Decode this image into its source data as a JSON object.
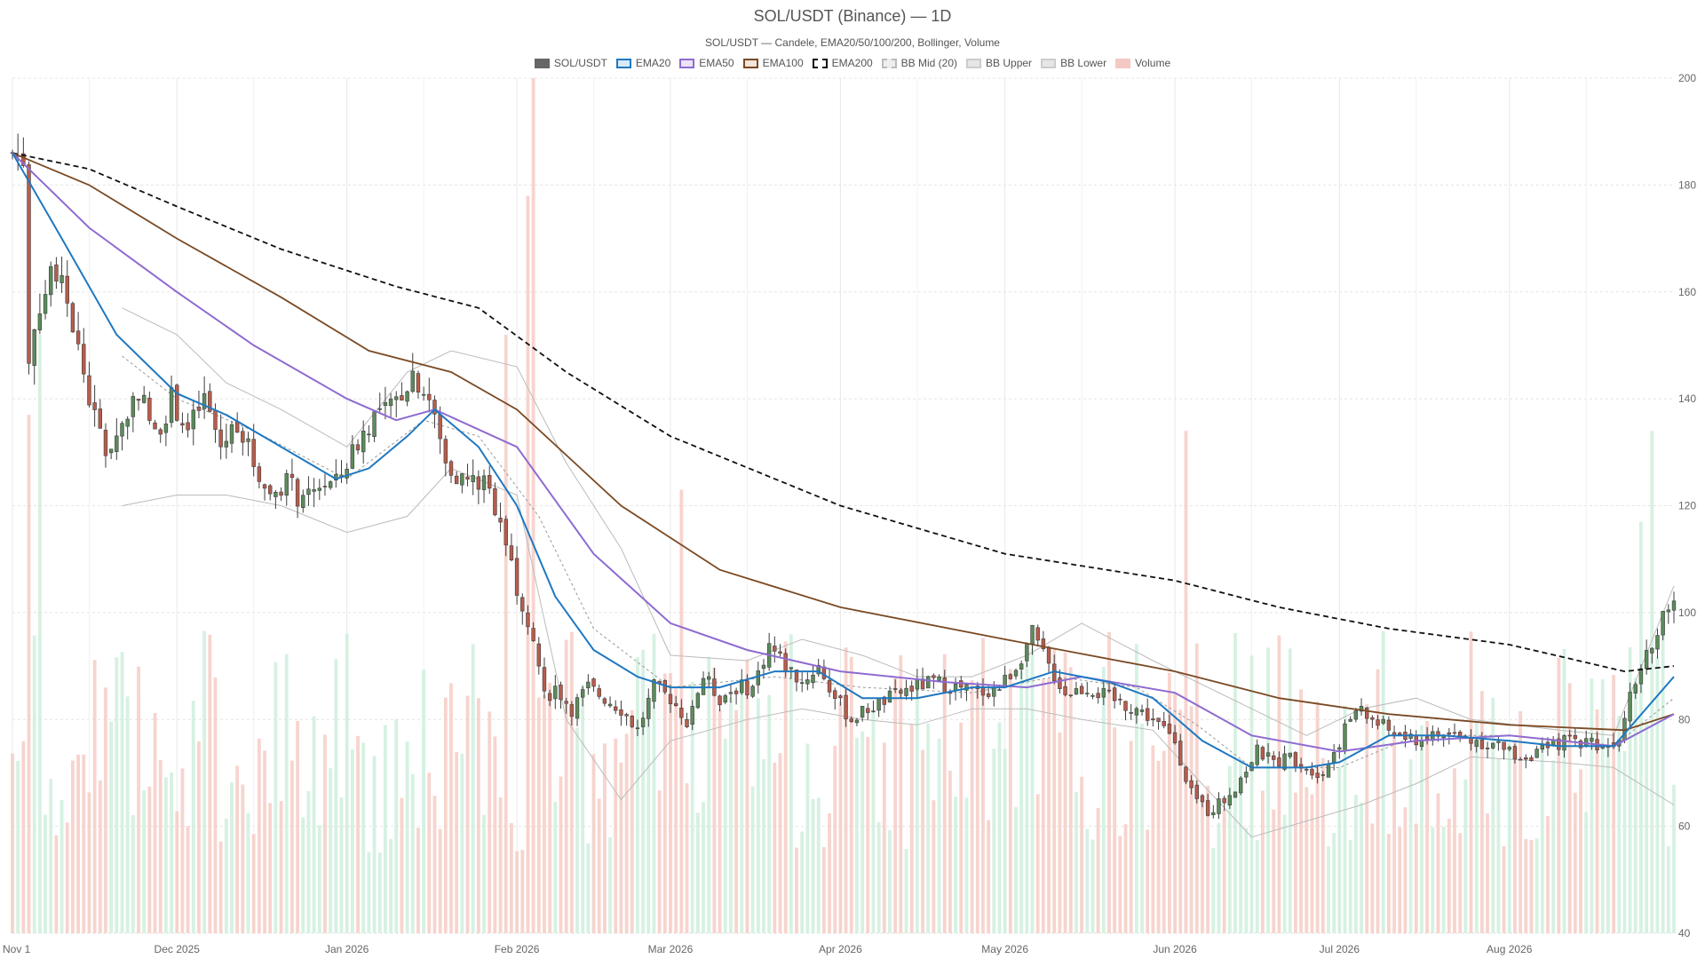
{
  "chart_data": {
    "type": "candlestick",
    "title": "SOL/USDT (Binance) — 1D",
    "subtitle": "SOL/USDT — Candele, EMA20/50/100/200, Bollinger, Volume",
    "legend": [
      {
        "name": "SOL/USDT",
        "fill": "#666666",
        "border": "#666666",
        "style": "solid"
      },
      {
        "name": "EMA20",
        "fill": "#d6eaf8",
        "border": "#1f78c1",
        "style": "solid"
      },
      {
        "name": "EMA50",
        "fill": "#ece3f7",
        "border": "#8e6bd1",
        "style": "solid"
      },
      {
        "name": "EMA100",
        "fill": "#f3e6da",
        "border": "#7a4a24",
        "style": "solid"
      },
      {
        "name": "EMA200",
        "fill": "#ffffff",
        "border": "#111111",
        "style": "dashed"
      },
      {
        "name": "BB Mid (20)",
        "fill": "#eeeeee",
        "border": "#bbbbbb",
        "style": "dashed"
      },
      {
        "name": "BB Upper",
        "fill": "#e6e6e6",
        "border": "#cccccc",
        "style": "solid"
      },
      {
        "name": "BB Lower",
        "fill": "#e6e6e6",
        "border": "#cccccc",
        "style": "solid"
      },
      {
        "name": "Volume",
        "fill": "#f4c9c3",
        "border": "#f4c9c3",
        "style": "solid"
      }
    ],
    "x_axis": {
      "start": "2025-11-01",
      "end": "2026-08-31",
      "tick_labels": [
        {
          "date": "2025-11-01",
          "label": "Nov 1"
        },
        {
          "date": "2025-12-01",
          "label": "Dec 2025"
        },
        {
          "date": "2026-01-01",
          "label": "Jan 2026"
        },
        {
          "date": "2026-02-01",
          "label": "Feb 2026"
        },
        {
          "date": "2026-03-01",
          "label": "Mar 2026"
        },
        {
          "date": "2026-04-01",
          "label": "Apr 2026"
        },
        {
          "date": "2026-05-01",
          "label": "May 2026"
        },
        {
          "date": "2026-06-01",
          "label": "Jun 2026"
        },
        {
          "date": "2026-07-01",
          "label": "Jul 2026"
        },
        {
          "date": "2026-08-01",
          "label": "Aug 2026"
        }
      ],
      "minor_grid_dates": [
        "2025-11-15",
        "2025-12-15",
        "2026-01-15",
        "2026-02-15",
        "2026-03-15",
        "2026-04-15",
        "2026-05-15",
        "2026-06-15",
        "2026-07-15",
        "2026-08-15"
      ]
    },
    "y_axis": {
      "position": "right",
      "min": 40,
      "max": 200,
      "ticks": [
        40,
        60,
        80,
        100,
        120,
        140,
        160,
        180,
        200
      ]
    },
    "grid": true,
    "legend_position": "top-center",
    "colors": {
      "up": "#5b8c5a",
      "down": "#b85c4c",
      "volume_up": "#cfeedd",
      "volume_down": "#f6ccc6",
      "ema20": "#1f78c1",
      "ema50": "#8e6bd1",
      "ema100": "#7a4a24",
      "ema200": "#111111",
      "bb_mid": "#999999",
      "bb_band": "#bbbbbb"
    },
    "price_path": [
      [
        "2025-11-01",
        186
      ],
      [
        "2025-11-03",
        185
      ],
      [
        "2025-11-04",
        148
      ],
      [
        "2025-11-06",
        158
      ],
      [
        "2025-11-09",
        164
      ],
      [
        "2025-11-12",
        154
      ],
      [
        "2025-11-15",
        140
      ],
      [
        "2025-11-18",
        130
      ],
      [
        "2025-11-21",
        135
      ],
      [
        "2025-11-24",
        142
      ],
      [
        "2025-11-27",
        133
      ],
      [
        "2025-11-30",
        140
      ],
      [
        "2025-12-03",
        134
      ],
      [
        "2025-12-06",
        140
      ],
      [
        "2025-12-09",
        131
      ],
      [
        "2025-12-12",
        136
      ],
      [
        "2025-12-15",
        128
      ],
      [
        "2025-12-18",
        122
      ],
      [
        "2025-12-21",
        125
      ],
      [
        "2025-12-24",
        120
      ],
      [
        "2025-12-27",
        124
      ],
      [
        "2025-12-30",
        124
      ],
      [
        "2026-01-03",
        132
      ],
      [
        "2026-01-06",
        137
      ],
      [
        "2026-01-09",
        138
      ],
      [
        "2026-01-13",
        145
      ],
      [
        "2026-01-16",
        140
      ],
      [
        "2026-01-19",
        128
      ],
      [
        "2026-01-22",
        125
      ],
      [
        "2026-01-26",
        124
      ],
      [
        "2026-01-29",
        118
      ],
      [
        "2026-02-01",
        105
      ],
      [
        "2026-02-04",
        96
      ],
      [
        "2026-02-06",
        84
      ],
      [
        "2026-02-08",
        86
      ],
      [
        "2026-02-11",
        82
      ],
      [
        "2026-02-14",
        86
      ],
      [
        "2026-02-17",
        84
      ],
      [
        "2026-02-20",
        82
      ],
      [
        "2026-02-23",
        78
      ],
      [
        "2026-02-26",
        86
      ],
      [
        "2026-03-01",
        84
      ],
      [
        "2026-03-04",
        80
      ],
      [
        "2026-03-07",
        88
      ],
      [
        "2026-03-10",
        84
      ],
      [
        "2026-03-13",
        86
      ],
      [
        "2026-03-16",
        86
      ],
      [
        "2026-03-19",
        94
      ],
      [
        "2026-03-22",
        90
      ],
      [
        "2026-03-25",
        87
      ],
      [
        "2026-03-28",
        90
      ],
      [
        "2026-03-31",
        84
      ],
      [
        "2026-04-03",
        80
      ],
      [
        "2026-04-06",
        82
      ],
      [
        "2026-04-10",
        84
      ],
      [
        "2026-04-14",
        86
      ],
      [
        "2026-04-18",
        87
      ],
      [
        "2026-04-22",
        86
      ],
      [
        "2026-04-26",
        85
      ],
      [
        "2026-04-30",
        86
      ],
      [
        "2026-05-03",
        90
      ],
      [
        "2026-05-06",
        96
      ],
      [
        "2026-05-09",
        90
      ],
      [
        "2026-05-12",
        85
      ],
      [
        "2026-05-16",
        86
      ],
      [
        "2026-05-20",
        84
      ],
      [
        "2026-05-25",
        82
      ],
      [
        "2026-05-28",
        80
      ],
      [
        "2026-06-01",
        76
      ],
      [
        "2026-06-04",
        66
      ],
      [
        "2026-06-07",
        63
      ],
      [
        "2026-06-10",
        65
      ],
      [
        "2026-06-13",
        69
      ],
      [
        "2026-06-16",
        74
      ],
      [
        "2026-06-19",
        72
      ],
      [
        "2026-06-22",
        73
      ],
      [
        "2026-06-25",
        71
      ],
      [
        "2026-06-28",
        70
      ],
      [
        "2026-07-01",
        76
      ],
      [
        "2026-07-04",
        82
      ],
      [
        "2026-07-07",
        80
      ],
      [
        "2026-07-10",
        78
      ],
      [
        "2026-07-14",
        76
      ],
      [
        "2026-07-18",
        77
      ],
      [
        "2026-07-22",
        77
      ],
      [
        "2026-07-26",
        76
      ],
      [
        "2026-07-30",
        75
      ],
      [
        "2026-08-03",
        73
      ],
      [
        "2026-08-07",
        74
      ],
      [
        "2026-08-11",
        76
      ],
      [
        "2026-08-15",
        76
      ],
      [
        "2026-08-19",
        75
      ],
      [
        "2026-08-21",
        77
      ],
      [
        "2026-08-23",
        86
      ],
      [
        "2026-08-26",
        92
      ],
      [
        "2026-08-29",
        100
      ],
      [
        "2026-08-31",
        103
      ]
    ],
    "ema20_path": [
      [
        "2025-11-01",
        186
      ],
      [
        "2025-11-10",
        170
      ],
      [
        "2025-11-20",
        152
      ],
      [
        "2025-12-01",
        141
      ],
      [
        "2025-12-10",
        137
      ],
      [
        "2025-12-20",
        131
      ],
      [
        "2025-12-30",
        125
      ],
      [
        "2026-01-05",
        127
      ],
      [
        "2026-01-12",
        133
      ],
      [
        "2026-01-17",
        138
      ],
      [
        "2026-01-25",
        131
      ],
      [
        "2026-02-01",
        120
      ],
      [
        "2026-02-08",
        103
      ],
      [
        "2026-02-15",
        93
      ],
      [
        "2026-02-23",
        88
      ],
      [
        "2026-03-01",
        86
      ],
      [
        "2026-03-10",
        86
      ],
      [
        "2026-03-20",
        89
      ],
      [
        "2026-03-28",
        89
      ],
      [
        "2026-04-05",
        84
      ],
      [
        "2026-04-15",
        84
      ],
      [
        "2026-04-25",
        86
      ],
      [
        "2026-05-01",
        86
      ],
      [
        "2026-05-10",
        89
      ],
      [
        "2026-05-20",
        87
      ],
      [
        "2026-05-28",
        84
      ],
      [
        "2026-06-06",
        76
      ],
      [
        "2026-06-15",
        71
      ],
      [
        "2026-06-25",
        71
      ],
      [
        "2026-07-01",
        72
      ],
      [
        "2026-07-10",
        77
      ],
      [
        "2026-07-20",
        77
      ],
      [
        "2026-08-01",
        76
      ],
      [
        "2026-08-10",
        75
      ],
      [
        "2026-08-20",
        75
      ],
      [
        "2026-08-31",
        88
      ]
    ],
    "ema50_path": [
      [
        "2025-11-01",
        186
      ],
      [
        "2025-11-15",
        172
      ],
      [
        "2025-12-01",
        160
      ],
      [
        "2025-12-15",
        150
      ],
      [
        "2026-01-01",
        140
      ],
      [
        "2026-01-10",
        136
      ],
      [
        "2026-01-17",
        138
      ],
      [
        "2026-02-01",
        131
      ],
      [
        "2026-02-15",
        111
      ],
      [
        "2026-03-01",
        98
      ],
      [
        "2026-03-15",
        93
      ],
      [
        "2026-04-01",
        89
      ],
      [
        "2026-04-20",
        87
      ],
      [
        "2026-05-05",
        86
      ],
      [
        "2026-05-15",
        88
      ],
      [
        "2026-06-01",
        85
      ],
      [
        "2026-06-15",
        77
      ],
      [
        "2026-07-01",
        74
      ],
      [
        "2026-07-15",
        76
      ],
      [
        "2026-08-01",
        77
      ],
      [
        "2026-08-20",
        75
      ],
      [
        "2026-08-31",
        81
      ]
    ],
    "ema100_path": [
      [
        "2025-11-01",
        186
      ],
      [
        "2025-11-15",
        180
      ],
      [
        "2025-12-01",
        170
      ],
      [
        "2025-12-20",
        159
      ],
      [
        "2026-01-05",
        149
      ],
      [
        "2026-01-20",
        145
      ],
      [
        "2026-02-01",
        138
      ],
      [
        "2026-02-20",
        120
      ],
      [
        "2026-03-10",
        108
      ],
      [
        "2026-04-01",
        101
      ],
      [
        "2026-05-01",
        95
      ],
      [
        "2026-06-01",
        89
      ],
      [
        "2026-06-20",
        84
      ],
      [
        "2026-07-10",
        81
      ],
      [
        "2026-08-01",
        79
      ],
      [
        "2026-08-22",
        78
      ],
      [
        "2026-08-31",
        81
      ]
    ],
    "ema200_path": [
      [
        "2025-11-01",
        186
      ],
      [
        "2025-11-15",
        183
      ],
      [
        "2025-12-01",
        176
      ],
      [
        "2025-12-20",
        168
      ],
      [
        "2026-01-10",
        161
      ],
      [
        "2026-01-25",
        157
      ],
      [
        "2026-02-10",
        145
      ],
      [
        "2026-03-01",
        133
      ],
      [
        "2026-04-01",
        120
      ],
      [
        "2026-05-01",
        111
      ],
      [
        "2026-06-01",
        106
      ],
      [
        "2026-06-20",
        101
      ],
      [
        "2026-07-10",
        97
      ],
      [
        "2026-08-01",
        94
      ],
      [
        "2026-08-22",
        89
      ],
      [
        "2026-08-31",
        90
      ]
    ],
    "bb_upper_path": [
      [
        "2025-11-21",
        157
      ],
      [
        "2025-12-01",
        152
      ],
      [
        "2025-12-10",
        143
      ],
      [
        "2025-12-20",
        138
      ],
      [
        "2026-01-01",
        131
      ],
      [
        "2026-01-12",
        145
      ],
      [
        "2026-01-20",
        149
      ],
      [
        "2026-02-01",
        146
      ],
      [
        "2026-02-10",
        128
      ],
      [
        "2026-02-20",
        112
      ],
      [
        "2026-03-01",
        92
      ],
      [
        "2026-03-15",
        91
      ],
      [
        "2026-03-25",
        95
      ],
      [
        "2026-04-05",
        92
      ],
      [
        "2026-04-15",
        88
      ],
      [
        "2026-04-25",
        88
      ],
      [
        "2026-05-05",
        92
      ],
      [
        "2026-05-15",
        98
      ],
      [
        "2026-05-28",
        91
      ],
      [
        "2026-06-05",
        87
      ],
      [
        "2026-06-15",
        82
      ],
      [
        "2026-06-25",
        77
      ],
      [
        "2026-07-05",
        82
      ],
      [
        "2026-07-15",
        84
      ],
      [
        "2026-07-25",
        80
      ],
      [
        "2026-08-10",
        78
      ],
      [
        "2026-08-20",
        77
      ],
      [
        "2026-08-31",
        105
      ]
    ],
    "bb_lower_path": [
      [
        "2025-11-21",
        120
      ],
      [
        "2025-12-01",
        122
      ],
      [
        "2025-12-10",
        122
      ],
      [
        "2025-12-20",
        120
      ],
      [
        "2026-01-01",
        115
      ],
      [
        "2026-01-12",
        118
      ],
      [
        "2026-01-20",
        127
      ],
      [
        "2026-02-01",
        122
      ],
      [
        "2026-02-10",
        80
      ],
      [
        "2026-02-20",
        65
      ],
      [
        "2026-03-01",
        76
      ],
      [
        "2026-03-15",
        80
      ],
      [
        "2026-03-25",
        82
      ],
      [
        "2026-04-05",
        80
      ],
      [
        "2026-04-15",
        79
      ],
      [
        "2026-04-25",
        82
      ],
      [
        "2026-05-05",
        82
      ],
      [
        "2026-05-15",
        80
      ],
      [
        "2026-05-28",
        78
      ],
      [
        "2026-06-05",
        69
      ],
      [
        "2026-06-15",
        58
      ],
      [
        "2026-06-25",
        61
      ],
      [
        "2026-07-05",
        64
      ],
      [
        "2026-07-15",
        68
      ],
      [
        "2026-07-25",
        73
      ],
      [
        "2026-08-10",
        72
      ],
      [
        "2026-08-20",
        71
      ],
      [
        "2026-08-31",
        64
      ]
    ],
    "bb_mid_path": [
      [
        "2025-11-21",
        148
      ],
      [
        "2025-12-01",
        140
      ],
      [
        "2025-12-15",
        134
      ],
      [
        "2026-01-01",
        125
      ],
      [
        "2026-01-15",
        136
      ],
      [
        "2026-01-25",
        133
      ],
      [
        "2026-02-05",
        118
      ],
      [
        "2026-02-15",
        97
      ],
      [
        "2026-03-01",
        86
      ],
      [
        "2026-03-20",
        88
      ],
      [
        "2026-04-05",
        86
      ],
      [
        "2026-04-25",
        85
      ],
      [
        "2026-05-10",
        88
      ],
      [
        "2026-05-25",
        86
      ],
      [
        "2026-06-05",
        79
      ],
      [
        "2026-06-15",
        71
      ],
      [
        "2026-07-01",
        71
      ],
      [
        "2026-07-15",
        77
      ],
      [
        "2026-08-01",
        77
      ],
      [
        "2026-08-20",
        75
      ],
      [
        "2026-08-31",
        84
      ]
    ],
    "volume_spikes": [
      {
        "date": "2026-02-04",
        "level": 200
      },
      {
        "date": "2026-02-03",
        "level": 178
      },
      {
        "date": "2026-01-30",
        "level": 152
      },
      {
        "date": "2026-06-03",
        "level": 134
      },
      {
        "date": "2026-08-27",
        "level": 134
      },
      {
        "date": "2026-03-03",
        "level": 123
      },
      {
        "date": "2026-08-25",
        "level": 117
      },
      {
        "date": "2025-11-04",
        "level": 137
      },
      {
        "date": "2025-11-06",
        "level": 152
      }
    ]
  }
}
